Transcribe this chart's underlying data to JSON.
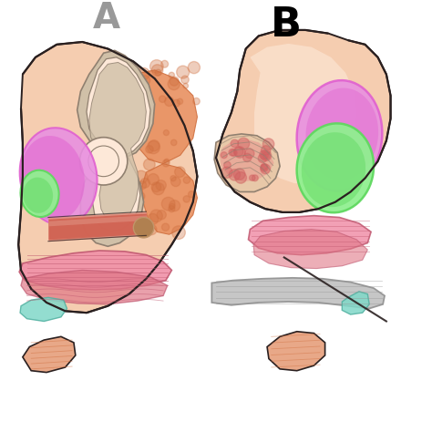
{
  "background_color": "#ffffff",
  "fig_width": 4.74,
  "fig_height": 4.74,
  "dpi": 100,
  "label_B": "B",
  "label_fontsize": 28,
  "skin_color": "#f5cdb0",
  "skin_light": "#fde8d8",
  "bone_color": "#e8c8a8",
  "bone_outline": "#c0956a",
  "orange_tissue": "#e89060",
  "orange_dot": "#d07040",
  "spine_gray": "#d0c0a8",
  "spine_outline": "#908070",
  "purple_color": "#e060d0",
  "purple_light": "#e890e0",
  "green_color": "#60d860",
  "green_light": "#90f090",
  "red_tube": "#d06050",
  "red_tube_light": "#e09080",
  "red_tube_tip": "#b08050",
  "pink_floor": "#f090a8",
  "pink_floor2": "#e07888",
  "pink_dark": "#c05870",
  "teal_color": "#80d8c8",
  "teal_dark": "#50b0a0",
  "bone_bottom": "#e8a888",
  "outline_color": "#2a2020",
  "gray_sling": "#909090",
  "gray_sling_light": "#c0c0c0",
  "right_tissue": "#e8a898"
}
